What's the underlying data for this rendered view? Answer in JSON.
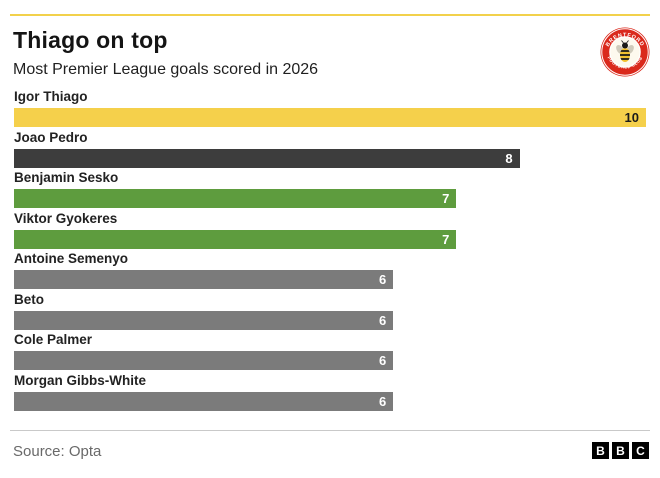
{
  "header": {
    "title": "Thiago on top",
    "subtitle": "Most Premier League goals scored in 2026",
    "badge": {
      "name": "Brentford FC crest",
      "top_text": "BRENTFORD",
      "bottom_text": "FOOTBALL CLUB"
    }
  },
  "chart_data": {
    "type": "bar",
    "orientation": "horizontal",
    "title": "Thiago on top",
    "subtitle": "Most Premier League goals scored in 2026",
    "xlim": [
      0,
      10
    ],
    "grid": false,
    "legend": "none",
    "categories": [
      "Igor Thiago",
      "Joao Pedro",
      "Benjamin Sesko",
      "Viktor Gyokeres",
      "Antoine Semenyo",
      "Beto",
      "Cole Palmer",
      "Morgan Gibbs-White"
    ],
    "values": [
      10,
      8,
      7,
      7,
      6,
      6,
      6,
      6
    ],
    "bar_colors": [
      "#F5D04B",
      "#3D3D3D",
      "#5E9C3E",
      "#5E9C3E",
      "#7B7B7B",
      "#7B7B7B",
      "#7B7B7B",
      "#7B7B7B"
    ],
    "value_text_colors": [
      "#1A1A1A",
      "#FFFFFF",
      "#FFFFFF",
      "#FFFFFF",
      "#FFFFFF",
      "#FFFFFF",
      "#FFFFFF",
      "#FFFFFF"
    ]
  },
  "colors": {
    "accent_yellow": "#F5D04B",
    "highlight_dark": "#3D3D3D",
    "green": "#5E9C3E",
    "gray": "#7B7B7B",
    "divider": "#C9C9C9",
    "source_text": "#696969",
    "crest_red": "#DA291C"
  },
  "footer": {
    "source": "Source: Opta",
    "logo_letters": [
      "B",
      "B",
      "C"
    ]
  }
}
